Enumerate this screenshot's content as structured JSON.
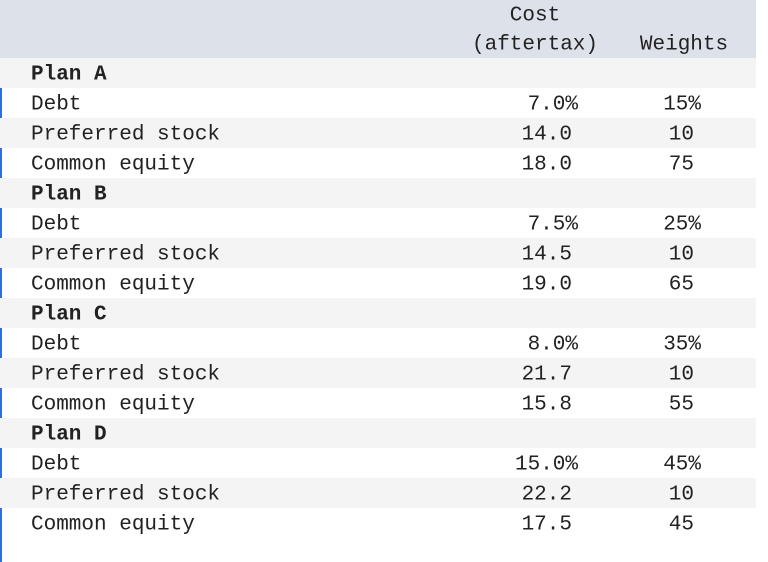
{
  "header": {
    "cost": [
      "Cost",
      "(aftertax)"
    ],
    "weights": "Weights"
  },
  "plans": [
    {
      "name": "Plan A",
      "rows": [
        {
          "label": "Debt",
          "cost": "7.0%",
          "weight": "15%"
        },
        {
          "label": "Preferred stock",
          "cost": "14.0",
          "weight": "10"
        },
        {
          "label": "Common equity",
          "cost": "18.0",
          "weight": "75"
        }
      ]
    },
    {
      "name": "Plan B",
      "rows": [
        {
          "label": "Debt",
          "cost": "7.5%",
          "weight": "25%"
        },
        {
          "label": "Preferred stock",
          "cost": "14.5",
          "weight": "10"
        },
        {
          "label": "Common equity",
          "cost": "19.0",
          "weight": "65"
        }
      ]
    },
    {
      "name": "Plan C",
      "rows": [
        {
          "label": "Debt",
          "cost": "8.0%",
          "weight": "35%"
        },
        {
          "label": "Preferred stock",
          "cost": "21.7",
          "weight": "10"
        },
        {
          "label": "Common equity",
          "cost": "15.8",
          "weight": "55"
        }
      ]
    },
    {
      "name": "Plan D",
      "rows": [
        {
          "label": "Debt",
          "cost": "15.0%",
          "weight": "45%"
        },
        {
          "label": "Preferred stock",
          "cost": "22.2",
          "weight": "10"
        },
        {
          "label": "Common equity",
          "cost": "17.5",
          "weight": "45"
        }
      ]
    }
  ]
}
